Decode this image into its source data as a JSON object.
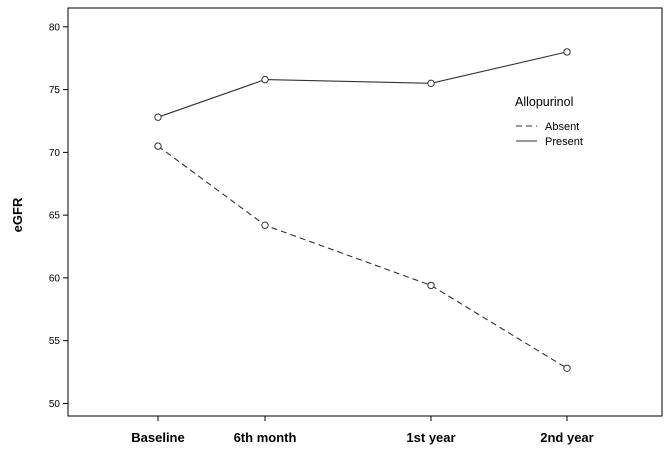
{
  "chart_data": {
    "type": "line",
    "categories": [
      "Baseline",
      "6th month",
      "1st year",
      "2nd year"
    ],
    "series": [
      {
        "name": "Present",
        "values": [
          72.8,
          75.8,
          75.5,
          78.0
        ],
        "line_style": "solid"
      },
      {
        "name": "Absent",
        "values": [
          70.5,
          64.2,
          59.4,
          52.8
        ],
        "line_style": "dashed"
      }
    ],
    "ylabel": "eGFR",
    "xlabel": "",
    "ylim": [
      49,
      81.5
    ],
    "yticks": [
      "50",
      "55",
      "60",
      "65",
      "70",
      "75",
      "80"
    ],
    "legend": {
      "title": "Allopurinol",
      "entries": [
        "Absent",
        "Present"
      ],
      "placement": "top-right (inside)"
    },
    "grid": false,
    "colors": {
      "line": "#333333",
      "marker": "#333333",
      "axis": "#000000"
    }
  }
}
